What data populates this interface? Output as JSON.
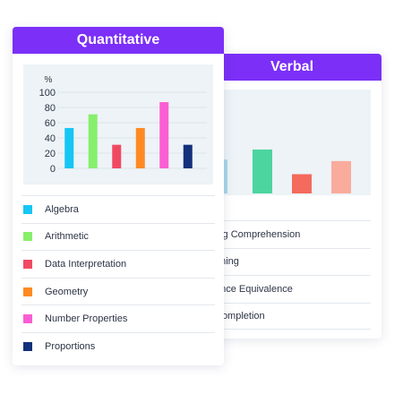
{
  "colors": {
    "header": "#7b2ff7",
    "panel_bg": "#edf3f7"
  },
  "verbal": {
    "title": "Verbal",
    "legend": [
      {
        "label": "ing Comprehension"
      },
      {
        "label": "oning"
      },
      {
        "label": "ence Equivalence"
      },
      {
        "label": "Completion"
      }
    ],
    "chart": {
      "type": "bar",
      "ylim": [
        0,
        100
      ],
      "bars": [
        {
          "value": 44,
          "color": "#a9d6e8"
        },
        {
          "value": 57,
          "color": "#4cd59f"
        },
        {
          "value": 25,
          "color": "#f46a5d"
        },
        {
          "value": 42,
          "color": "#f9ab9c"
        }
      ]
    }
  },
  "quantitative": {
    "title": "Quantitative",
    "legend": [
      {
        "label": "Algebra",
        "color": "#16c6f4"
      },
      {
        "label": "Arithmetic",
        "color": "#86ef6c"
      },
      {
        "label": "Data Interpretation",
        "color": "#f04a63"
      },
      {
        "label": "Geometry",
        "color": "#ff8a23"
      },
      {
        "label": "Number Properties",
        "color": "#fb5ed2"
      },
      {
        "label": "Proportions",
        "color": "#12307b"
      }
    ]
  },
  "chart_data": {
    "type": "bar",
    "title": "",
    "ylabel": "%",
    "xlabel": "",
    "ylim": [
      0,
      100
    ],
    "yticks": [
      "100",
      "80",
      "60",
      "40",
      "20",
      "0"
    ],
    "categories": [
      "Algebra",
      "Arithmetic",
      "Data Interpretation",
      "Geometry",
      "Number Properties",
      "Proportions"
    ],
    "values": [
      53,
      71,
      31,
      53,
      87,
      31
    ],
    "colors": [
      "#16c6f4",
      "#86ef6c",
      "#f04a63",
      "#ff8a23",
      "#fb5ed2",
      "#12307b"
    ]
  }
}
